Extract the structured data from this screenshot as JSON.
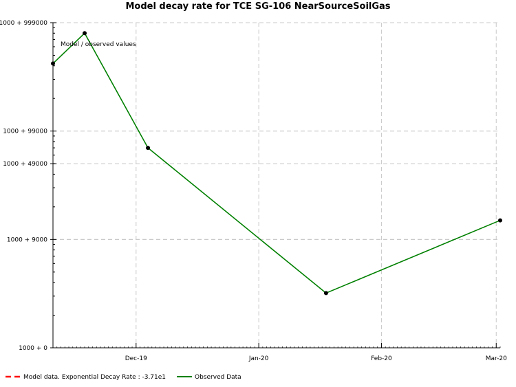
{
  "chart_data": {
    "type": "line",
    "title": "Model decay rate for  TCE SG-106 NearSourceSoilGas",
    "y_scale": "log",
    "y_ticks": [
      {
        "value": 1000,
        "label": "1000 + 0"
      },
      {
        "value": 10000,
        "label": "1000 + 9000"
      },
      {
        "value": 50000,
        "label": "1000 + 49000"
      },
      {
        "value": 100000,
        "label": "1000 + 99000"
      },
      {
        "value": 1000000,
        "label": "1000 + 999000"
      }
    ],
    "ylim": [
      1000,
      1000000
    ],
    "x_ticks": [
      {
        "value": "2019-12-01",
        "label": "Dec-19"
      },
      {
        "value": "2020-01-01",
        "label": "Jan-20"
      },
      {
        "value": "2020-02-01",
        "label": "Feb-20"
      },
      {
        "value": "2020-03-01",
        "label": "Mar-20"
      }
    ],
    "xlim": [
      "2019-11-10",
      "2020-03-02"
    ],
    "grid": true,
    "annotation": "Model / observed values",
    "series": [
      {
        "name": "Observed Data",
        "color": "#008000",
        "points": [
          {
            "x": "2019-11-10",
            "y": 420000
          },
          {
            "x": "2019-11-18",
            "y": 800000
          },
          {
            "x": "2019-12-04",
            "y": 70000
          },
          {
            "x": "2020-01-18",
            "y": 3200
          },
          {
            "x": "2020-03-02",
            "y": 15000
          }
        ]
      }
    ],
    "legend": [
      {
        "label": "Model data. Exponential Decay Rate : -3.71e1",
        "color": "#ff0000",
        "style": "dashed"
      },
      {
        "label": "Observed Data",
        "color": "#008000",
        "style": "solid"
      }
    ],
    "legend_position": "bottom-left"
  }
}
